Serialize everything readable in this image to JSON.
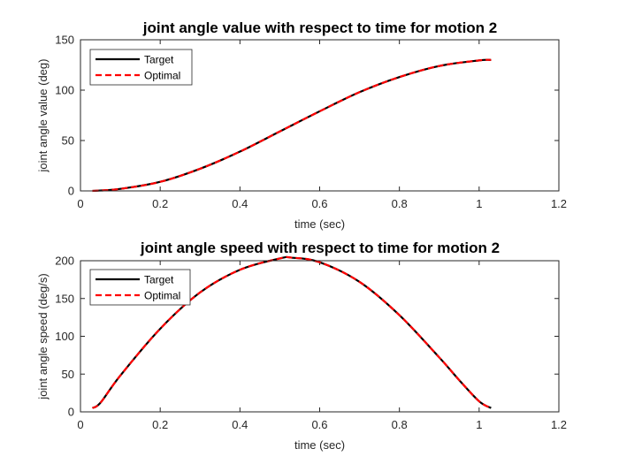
{
  "chart_data": [
    {
      "type": "line",
      "title": "joint angle value with respect to time for motion 2",
      "xlabel": "time (sec)",
      "ylabel": "joint angle value (deg)",
      "xlim": [
        0,
        1.2
      ],
      "ylim": [
        0,
        150
      ],
      "xticks": [
        0,
        0.2,
        0.4,
        0.6,
        0.8,
        1,
        1.2
      ],
      "yticks": [
        0,
        50,
        100,
        150
      ],
      "xtick_labels": [
        "0",
        "0.2",
        "0.4",
        "0.6",
        "0.8",
        "1",
        "1.2"
      ],
      "ytick_labels": [
        "0",
        "50",
        "100",
        "150"
      ],
      "grid": false,
      "legend_position": "top-left",
      "x": [
        0.03,
        0.1,
        0.2,
        0.3,
        0.4,
        0.5,
        0.6,
        0.7,
        0.8,
        0.9,
        1.0,
        1.03
      ],
      "series": [
        {
          "name": "Target",
          "color": "#000000",
          "style": "solid",
          "values": [
            0,
            2,
            9,
            22,
            39,
            59,
            79,
            98,
            113,
            124,
            129.5,
            130
          ]
        },
        {
          "name": "Optimal",
          "color": "#ff0000",
          "style": "dashed",
          "values": [
            0,
            2,
            9,
            22,
            39,
            59,
            79,
            98,
            113,
            124,
            129.5,
            130
          ]
        }
      ]
    },
    {
      "type": "line",
      "title": "joint angle speed with respect to time for motion 2",
      "xlabel": "time (sec)",
      "ylabel": "joint angle speed (deg/s)",
      "xlim": [
        0,
        1.2
      ],
      "ylim": [
        0,
        200
      ],
      "xticks": [
        0,
        0.2,
        0.4,
        0.6,
        0.8,
        1,
        1.2
      ],
      "yticks": [
        0,
        50,
        100,
        150,
        200
      ],
      "xtick_labels": [
        "0",
        "0.2",
        "0.4",
        "0.6",
        "0.8",
        "1",
        "1.2"
      ],
      "ytick_labels": [
        "0",
        "50",
        "100",
        "150",
        "200"
      ],
      "grid": false,
      "legend_position": "top-left",
      "x": [
        0.03,
        0.05,
        0.1,
        0.2,
        0.3,
        0.4,
        0.5,
        0.53,
        0.6,
        0.7,
        0.8,
        0.9,
        0.95,
        1.0,
        1.03
      ],
      "series": [
        {
          "name": "Target",
          "color": "#000000",
          "style": "solid",
          "values": [
            5,
            12,
            48,
            110,
            158,
            188,
            203,
            204,
            198,
            172,
            128,
            72,
            42,
            14,
            5
          ]
        },
        {
          "name": "Optimal",
          "color": "#ff0000",
          "style": "dashed",
          "values": [
            5,
            12,
            48,
            110,
            158,
            188,
            203,
            204,
            198,
            172,
            128,
            72,
            42,
            14,
            5
          ]
        }
      ]
    }
  ]
}
